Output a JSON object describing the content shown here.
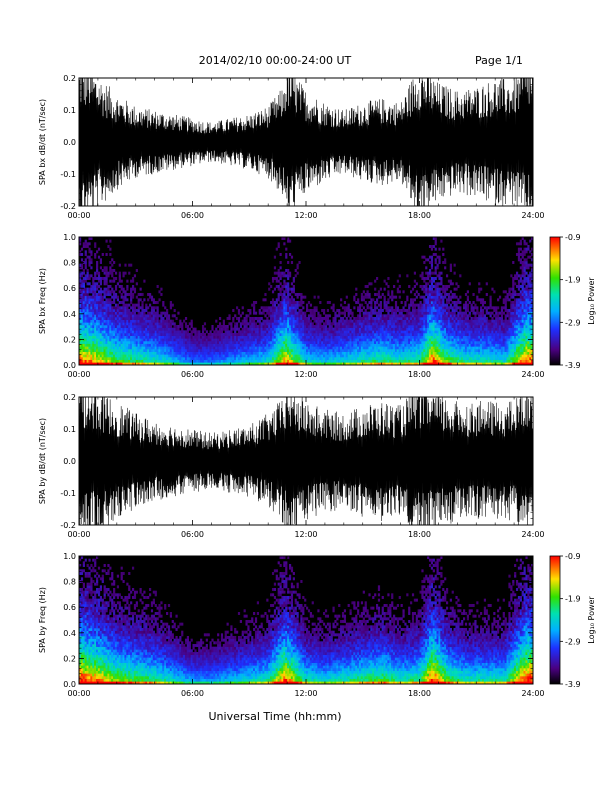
{
  "header": {
    "title": "2014/02/10   00:00-24:00 UT",
    "page": "Page 1/1"
  },
  "x_axis_label": "Universal Time (hh:mm)",
  "colorbar_label": "Log₁₀ Power",
  "colorbar_ticks": [
    "-0.9",
    "-1.9",
    "-2.9",
    "-3.9"
  ],
  "colors": {
    "background": "#ffffff",
    "trace": "#000000",
    "spectrogram_background": "#000000"
  },
  "chart_data": [
    {
      "type": "line",
      "ylabel": "SPA bx dB/dt (nT/sec)",
      "xlim": [
        "00:00",
        "24:00"
      ],
      "xticks": [
        "00:00",
        "06:00",
        "12:00",
        "18:00",
        "24:00"
      ],
      "ylim": [
        -0.2,
        0.2
      ],
      "yticks": [
        "0.2",
        "0.1",
        "0.0",
        "-0.1",
        "-0.2"
      ],
      "envelope_x_hours": [
        0,
        0.5,
        1,
        2,
        3,
        4,
        5,
        6,
        7,
        8,
        9,
        10,
        10.8,
        11,
        12,
        13,
        14,
        15,
        16,
        17,
        18,
        19,
        20,
        21,
        22,
        23,
        23.6,
        24
      ],
      "envelope_amplitude": [
        0.2,
        0.2,
        0.17,
        0.12,
        0.09,
        0.08,
        0.07,
        0.06,
        0.05,
        0.06,
        0.07,
        0.09,
        0.14,
        0.2,
        0.13,
        0.1,
        0.08,
        0.1,
        0.11,
        0.1,
        0.2,
        0.15,
        0.13,
        0.14,
        0.16,
        0.16,
        0.2,
        0.2
      ]
    },
    {
      "type": "heatmap",
      "ylabel": "SPA bx Freq (Hz)",
      "xlim": [
        "00:00",
        "24:00"
      ],
      "xticks": [
        "00:00",
        "06:00",
        "12:00",
        "18:00",
        "24:00"
      ],
      "ylim": [
        0.0,
        1.0
      ],
      "yticks": [
        "1.0",
        "0.8",
        "0.6",
        "0.4",
        "0.2",
        "0.0"
      ],
      "zlim": [
        -3.9,
        -0.9
      ],
      "activity_x_hours": [
        0,
        1,
        2,
        3,
        4,
        5,
        6,
        7,
        8,
        9,
        10,
        10.9,
        12,
        13,
        14,
        15,
        16,
        17,
        18,
        18.7,
        19.5,
        20.5,
        21.5,
        22.5,
        23.6,
        24
      ],
      "activity_level": [
        0.9,
        0.8,
        0.65,
        0.6,
        0.55,
        0.45,
        0.35,
        0.35,
        0.4,
        0.45,
        0.5,
        0.85,
        0.5,
        0.45,
        0.5,
        0.55,
        0.6,
        0.55,
        0.6,
        0.9,
        0.65,
        0.55,
        0.55,
        0.5,
        0.9,
        0.9
      ]
    },
    {
      "type": "line",
      "ylabel": "SPA by dB/dt (nT/sec)",
      "xlim": [
        "00:00",
        "24:00"
      ],
      "xticks": [
        "00:00",
        "06:00",
        "12:00",
        "18:00",
        "24:00"
      ],
      "ylim": [
        -0.2,
        0.2
      ],
      "yticks": [
        "0.2",
        "0.1",
        "0.0",
        "-0.1",
        "-0.2"
      ],
      "envelope_x_hours": [
        0,
        0.5,
        1,
        2,
        3,
        4,
        5,
        6,
        7,
        8,
        9,
        10,
        10.8,
        11,
        12,
        13,
        14,
        15,
        16,
        17,
        18,
        19,
        20,
        21,
        22,
        23,
        23.6,
        24
      ],
      "envelope_amplitude": [
        0.2,
        0.2,
        0.18,
        0.15,
        0.12,
        0.1,
        0.09,
        0.08,
        0.07,
        0.08,
        0.09,
        0.12,
        0.16,
        0.2,
        0.15,
        0.13,
        0.12,
        0.14,
        0.15,
        0.14,
        0.2,
        0.17,
        0.15,
        0.15,
        0.15,
        0.15,
        0.2,
        0.2
      ]
    },
    {
      "type": "heatmap",
      "ylabel": "SPA by Freq (Hz)",
      "xlim": [
        "00:00",
        "24:00"
      ],
      "xticks": [
        "00:00",
        "06:00",
        "12:00",
        "18:00",
        "24:00"
      ],
      "ylim": [
        0.0,
        1.0
      ],
      "yticks": [
        "1.0",
        "0.8",
        "0.6",
        "0.4",
        "0.2",
        "0.0"
      ],
      "zlim": [
        -3.9,
        -0.9
      ],
      "activity_x_hours": [
        0,
        1,
        2,
        3,
        4,
        5,
        6,
        7,
        8,
        9,
        10,
        10.9,
        12,
        13,
        14,
        15,
        16,
        17,
        18,
        18.7,
        19.5,
        20.5,
        21.5,
        22.5,
        23.6,
        24
      ],
      "activity_level": [
        0.95,
        0.85,
        0.7,
        0.65,
        0.6,
        0.5,
        0.4,
        0.4,
        0.45,
        0.5,
        0.55,
        0.9,
        0.55,
        0.5,
        0.55,
        0.6,
        0.65,
        0.55,
        0.6,
        0.95,
        0.65,
        0.55,
        0.55,
        0.55,
        0.95,
        0.95
      ]
    }
  ]
}
